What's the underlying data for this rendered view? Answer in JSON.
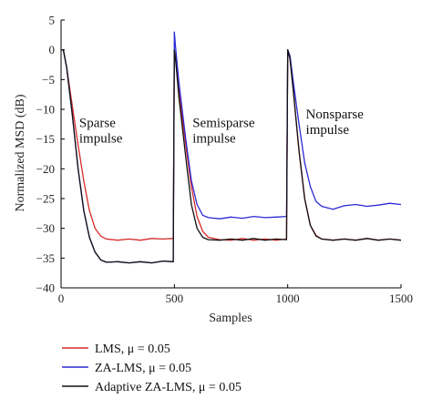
{
  "chart_data": {
    "type": "line",
    "xlabel": "Samples",
    "ylabel": "Normalized MSD (dB)",
    "xlim": [
      0,
      1500
    ],
    "ylim": [
      -40,
      5
    ],
    "xticks": [
      0,
      500,
      1000,
      1500
    ],
    "yticks": [
      5,
      0,
      -5,
      -10,
      -15,
      -20,
      -25,
      -30,
      -35,
      -40
    ],
    "grid": false,
    "legend_position": "bottom-left, below plot",
    "annotations": [
      {
        "lines": [
          "Sparse",
          "impulse"
        ],
        "x": 80,
        "y": -13
      },
      {
        "lines": [
          "Semisparse",
          "impulse"
        ],
        "x": 580,
        "y": -13
      },
      {
        "lines": [
          "Nonsparse",
          "impulse"
        ],
        "x": 1080,
        "y": -11.5
      }
    ],
    "series": [
      {
        "name": "LMS, μ = 0.05",
        "color": "#d42a2a",
        "x": [
          0,
          10,
          25,
          50,
          75,
          100,
          125,
          150,
          175,
          200,
          250,
          300,
          350,
          400,
          450,
          495,
          500,
          505,
          520,
          550,
          575,
          600,
          625,
          650,
          700,
          750,
          800,
          850,
          900,
          950,
          995,
          1000,
          1010,
          1025,
          1050,
          1075,
          1100,
          1125,
          1150,
          1200,
          1250,
          1300,
          1350,
          1400,
          1450,
          1500
        ],
        "y": [
          0,
          0,
          -3,
          -9.5,
          -16,
          -22,
          -27,
          -30,
          -31.3,
          -31.8,
          -32,
          -31.8,
          -32,
          -31.7,
          -31.8,
          -31.7,
          0,
          -1.5,
          -7,
          -16,
          -23,
          -28,
          -30.5,
          -31.5,
          -31.9,
          -32,
          -31.7,
          -32,
          -31.8,
          -32,
          -31.8,
          0,
          -1.5,
          -7,
          -17,
          -25,
          -29.5,
          -31.2,
          -31.8,
          -32,
          -31.8,
          -32,
          -31.7,
          -32,
          -31.8,
          -32
        ]
      },
      {
        "name": "ZA-LMS, μ = 0.05",
        "color": "#2a2ad4",
        "x": [
          0,
          10,
          25,
          50,
          75,
          100,
          125,
          150,
          175,
          200,
          250,
          300,
          350,
          400,
          450,
          495,
          500,
          505,
          520,
          550,
          575,
          600,
          625,
          650,
          700,
          750,
          800,
          850,
          900,
          950,
          995,
          1000,
          1010,
          1025,
          1050,
          1075,
          1100,
          1125,
          1150,
          1200,
          1250,
          1300,
          1350,
          1400,
          1450,
          1500
        ],
        "y": [
          0,
          0,
          -3,
          -11,
          -20,
          -27,
          -31.5,
          -34,
          -35.3,
          -35.7,
          -35.6,
          -35.8,
          -35.6,
          -35.8,
          -35.5,
          -35.6,
          3,
          0.5,
          -5.5,
          -15,
          -22,
          -26,
          -27.8,
          -28.2,
          -28.4,
          -28.1,
          -28.3,
          -28,
          -28.2,
          -28.1,
          -28,
          0,
          -1,
          -5.5,
          -12.5,
          -19,
          -23,
          -25.5,
          -26.3,
          -26.8,
          -26.2,
          -26,
          -26.3,
          -26.1,
          -25.8,
          -26
        ]
      },
      {
        "name": "Adaptive ZA-LMS, μ = 0.05",
        "color": "#111111",
        "x": [
          0,
          10,
          25,
          50,
          75,
          100,
          125,
          150,
          175,
          200,
          250,
          300,
          350,
          400,
          450,
          495,
          500,
          505,
          520,
          550,
          575,
          600,
          625,
          650,
          700,
          750,
          800,
          850,
          900,
          950,
          995,
          1000,
          1010,
          1025,
          1050,
          1075,
          1100,
          1125,
          1150,
          1200,
          1250,
          1300,
          1350,
          1400,
          1450,
          1500
        ],
        "y": [
          0,
          0,
          -3,
          -11,
          -20,
          -27,
          -31.5,
          -34,
          -35.3,
          -35.7,
          -35.6,
          -35.8,
          -35.6,
          -35.8,
          -35.5,
          -35.6,
          0,
          -1.5,
          -8,
          -18,
          -26,
          -30,
          -31.5,
          -31.9,
          -32,
          -31.8,
          -32,
          -31.7,
          -32,
          -31.8,
          -31.9,
          0,
          -1.5,
          -7,
          -17,
          -25,
          -29.5,
          -31.3,
          -31.8,
          -32,
          -31.8,
          -32,
          -31.7,
          -32,
          -31.8,
          -32
        ]
      }
    ]
  }
}
